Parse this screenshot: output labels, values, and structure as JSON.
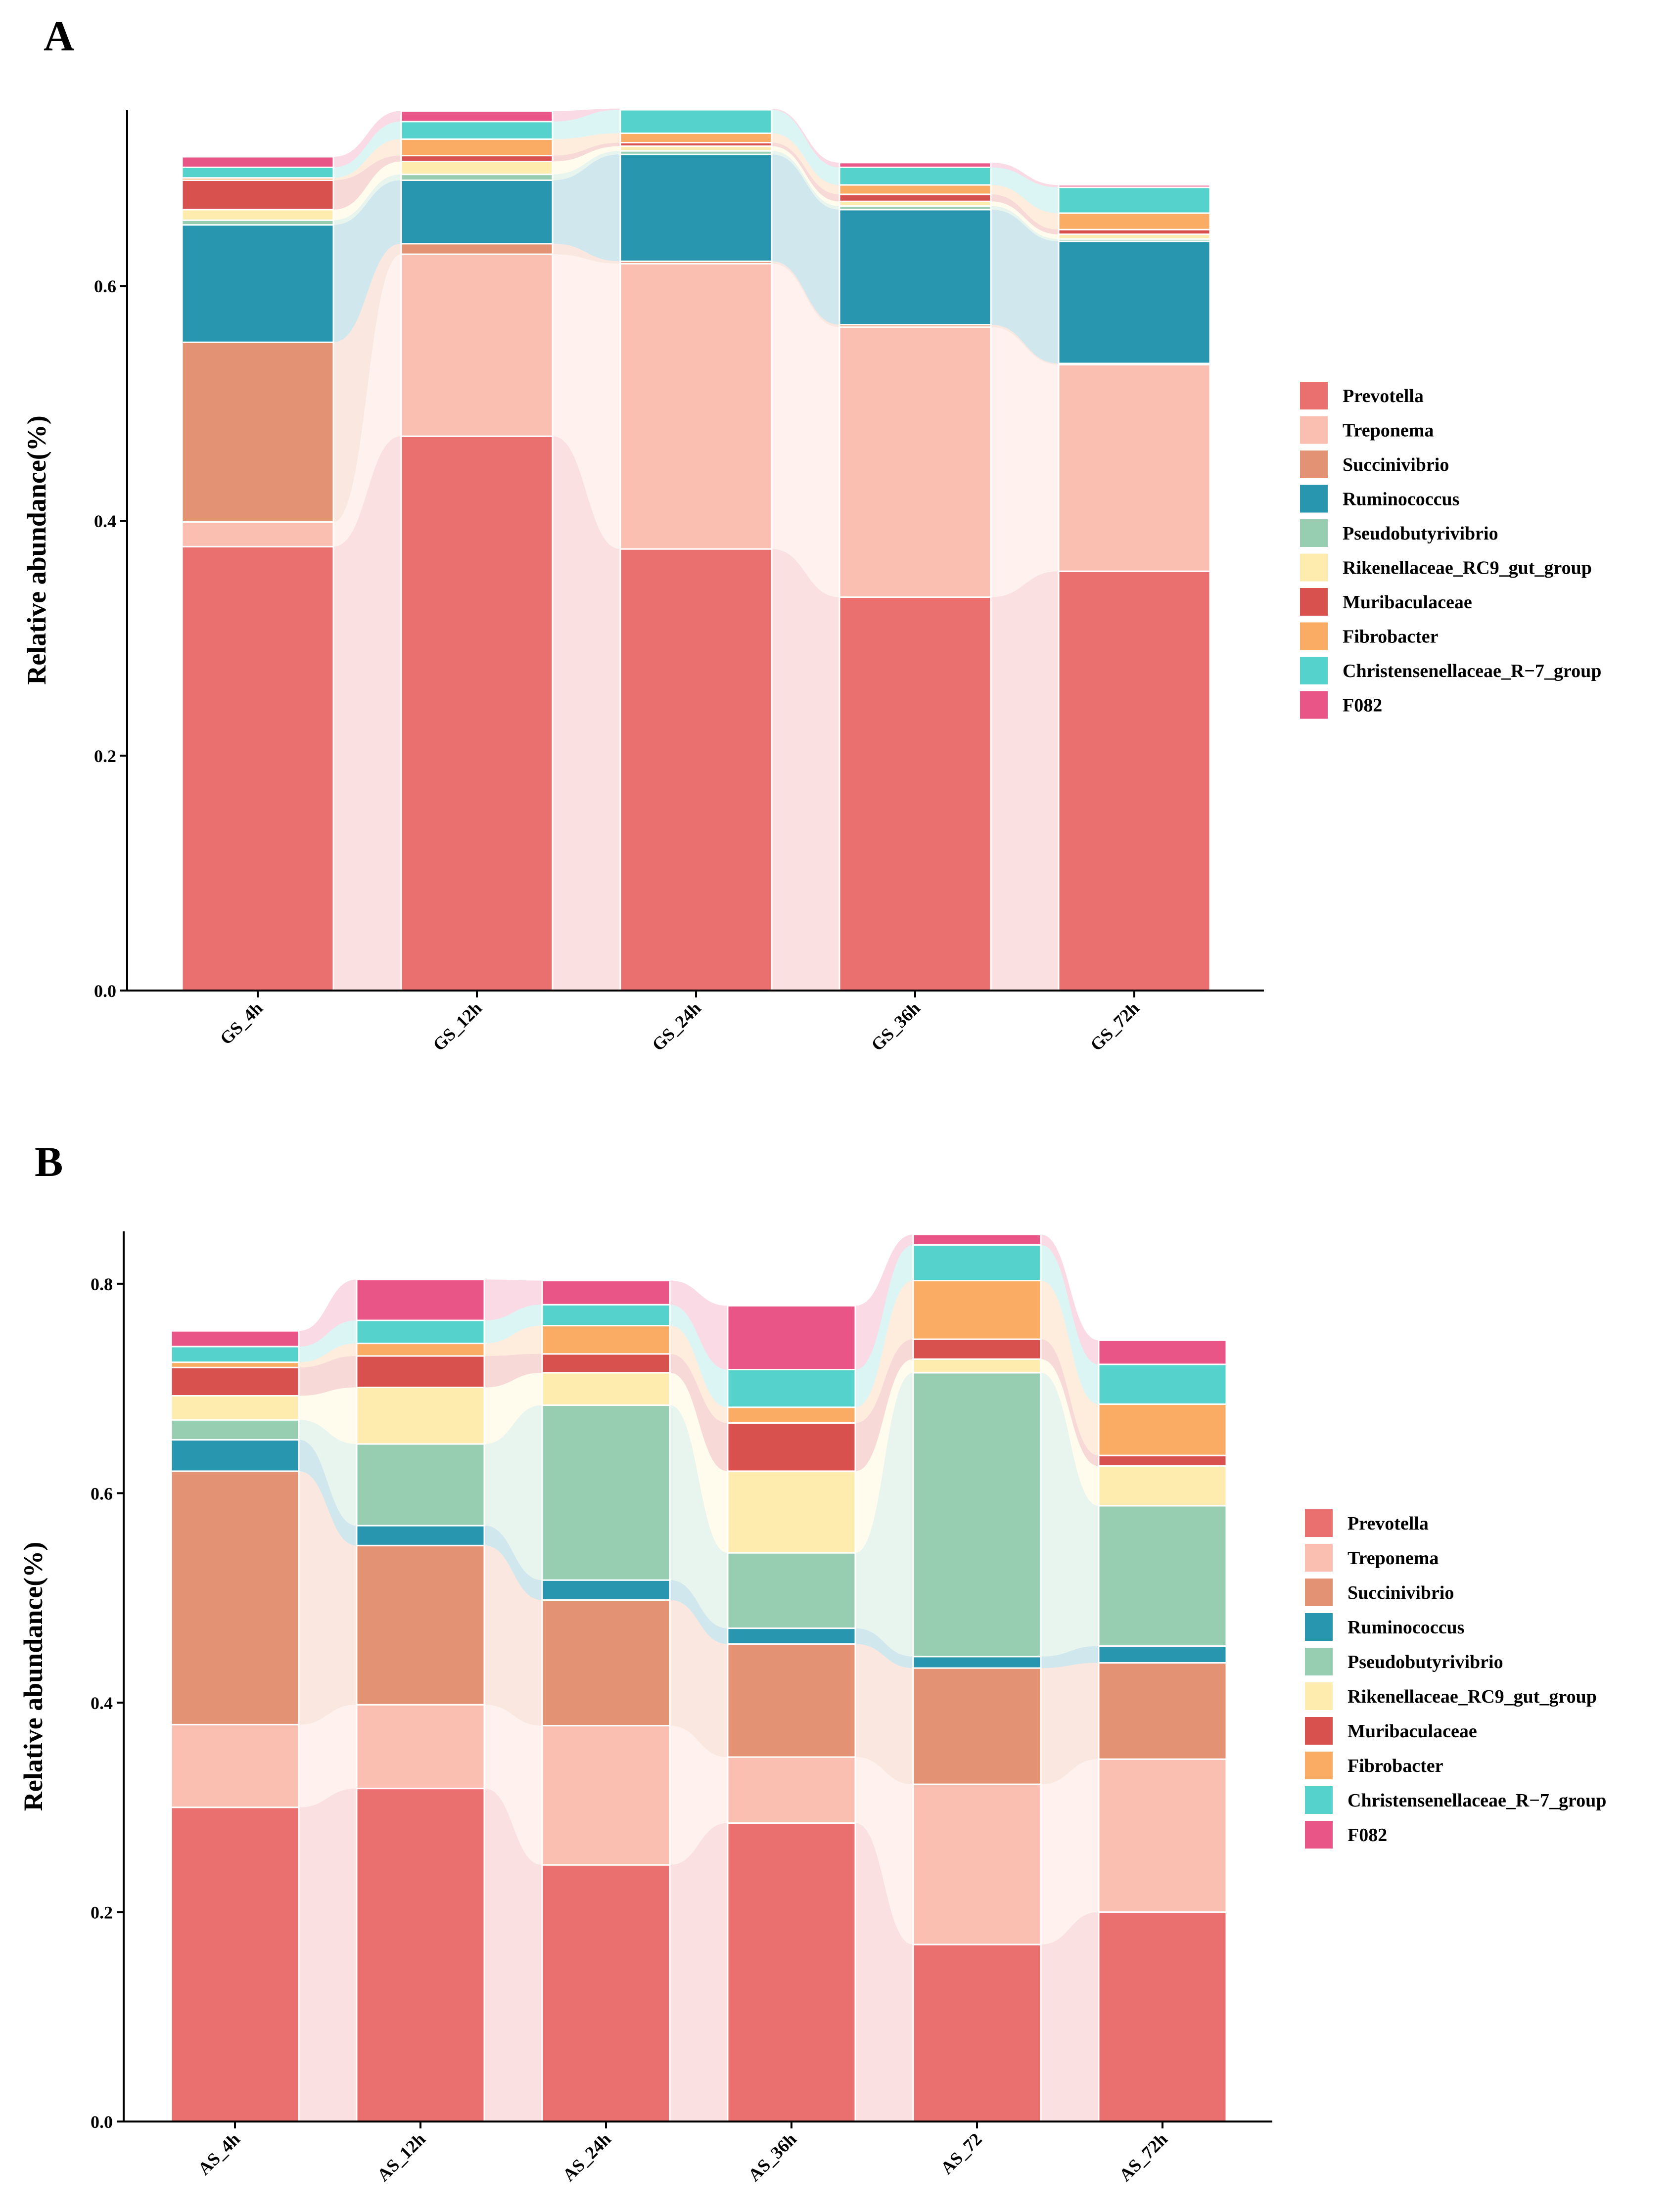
{
  "figure": {
    "colors": {
      "Prevotella": "#EA7070",
      "Treponema": "#FBBFB2",
      "Succinivibrio": "#E39374",
      "Ruminococcus": "#2796AE",
      "Pseudobutyrivibrio": "#97CDB0",
      "Rikenellaceae_RC9_gut_group": "#FDECAE",
      "Muribaculaceae": "#D9514F",
      "Fibrobacter": "#FBAC64",
      "Christensenellaceae_R−7_group": "#55D2CC",
      "F082": "#EA5587"
    }
  },
  "chart_data": [
    {
      "panel_label": "A",
      "type": "bar",
      "stacked": true,
      "alluvial_links": true,
      "categories": [
        "GS_4h",
        "GS_12h",
        "GS_24h",
        "GS_36h",
        "GS_72h"
      ],
      "ylabel": "Relative abundance(%)",
      "xlabel": "",
      "ylim": [
        0,
        0.75
      ],
      "yticks": [
        "0.0",
        "0.2",
        "0.4",
        "0.6"
      ],
      "ytick_values": [
        0,
        0.2,
        0.4,
        0.6
      ],
      "legend": [
        "Prevotella",
        "Treponema",
        "Succinivibrio",
        "Ruminococcus",
        "Pseudobutyrivibrio",
        "Rikenellaceae_RC9_gut_group",
        "Muribaculaceae",
        "Fibrobacter",
        "Christensenellaceae_R−7_group",
        "F082"
      ],
      "legend_position": "right",
      "series": [
        {
          "name": "Prevotella",
          "values": [
            0.378,
            0.472,
            0.376,
            0.335,
            0.357
          ]
        },
        {
          "name": "Treponema",
          "values": [
            0.021,
            0.155,
            0.243,
            0.23,
            0.176
          ]
        },
        {
          "name": "Succinivibrio",
          "values": [
            0.153,
            0.009,
            0.002,
            0.002,
            0.001
          ]
        },
        {
          "name": "Ruminococcus",
          "values": [
            0.1,
            0.054,
            0.091,
            0.098,
            0.104
          ]
        },
        {
          "name": "Pseudobutyrivibrio",
          "values": [
            0.004,
            0.005,
            0.003,
            0.003,
            0.002
          ]
        },
        {
          "name": "Rikenellaceae_RC9_gut_group",
          "values": [
            0.009,
            0.011,
            0.004,
            0.004,
            0.004
          ]
        },
        {
          "name": "Muribaculaceae",
          "values": [
            0.025,
            0.005,
            0.003,
            0.006,
            0.004
          ]
        },
        {
          "name": "Fibrobacter",
          "values": [
            0.002,
            0.014,
            0.008,
            0.008,
            0.014
          ]
        },
        {
          "name": "Christensenellaceae_R−7_group",
          "values": [
            0.009,
            0.015,
            0.02,
            0.015,
            0.022
          ]
        },
        {
          "name": "F082",
          "values": [
            0.009,
            0.009,
            0.001,
            0.004,
            0.002
          ]
        }
      ]
    },
    {
      "panel_label": "B",
      "type": "bar",
      "stacked": true,
      "alluvial_links": true,
      "categories": [
        "AS_4h",
        "AS_12h",
        "AS_24h",
        "AS_36h",
        "AS_72",
        "AS_72h"
      ],
      "ylabel": "Relative abundance(%)",
      "xlabel": "",
      "ylim": [
        0,
        0.85
      ],
      "yticks": [
        "0.0",
        "0.2",
        "0.4",
        "0.6",
        "0.8"
      ],
      "ytick_values": [
        0,
        0.2,
        0.4,
        0.6,
        0.8
      ],
      "legend": [
        "Prevotella",
        "Treponema",
        "Succinivibrio",
        "Ruminococcus",
        "Pseudobutyrivibrio",
        "Rikenellaceae_RC9_gut_group",
        "Muribaculaceae",
        "Fibrobacter",
        "Christensenellaceae_R−7_group",
        "F082"
      ],
      "legend_position": "right",
      "series": [
        {
          "name": "Prevotella",
          "values": [
            0.3,
            0.318,
            0.245,
            0.285,
            0.169,
            0.2
          ]
        },
        {
          "name": "Treponema",
          "values": [
            0.079,
            0.08,
            0.133,
            0.063,
            0.153,
            0.146
          ]
        },
        {
          "name": "Succinivibrio",
          "values": [
            0.242,
            0.152,
            0.12,
            0.108,
            0.111,
            0.092
          ]
        },
        {
          "name": "Ruminococcus",
          "values": [
            0.03,
            0.019,
            0.019,
            0.015,
            0.011,
            0.016
          ]
        },
        {
          "name": "Pseudobutyrivibrio",
          "values": [
            0.019,
            0.078,
            0.167,
            0.072,
            0.271,
            0.134
          ]
        },
        {
          "name": "Rikenellaceae_RC9_gut_group",
          "values": [
            0.023,
            0.054,
            0.031,
            0.078,
            0.013,
            0.038
          ]
        },
        {
          "name": "Muribaculaceae",
          "values": [
            0.027,
            0.03,
            0.018,
            0.046,
            0.019,
            0.01
          ]
        },
        {
          "name": "Fibrobacter",
          "values": [
            0.005,
            0.012,
            0.027,
            0.015,
            0.056,
            0.049
          ]
        },
        {
          "name": "Christensenellaceae_R−7_group",
          "values": [
            0.015,
            0.022,
            0.02,
            0.036,
            0.034,
            0.038
          ]
        },
        {
          "name": "F082",
          "values": [
            0.015,
            0.039,
            0.023,
            0.061,
            0.01,
            0.023
          ]
        }
      ]
    }
  ]
}
